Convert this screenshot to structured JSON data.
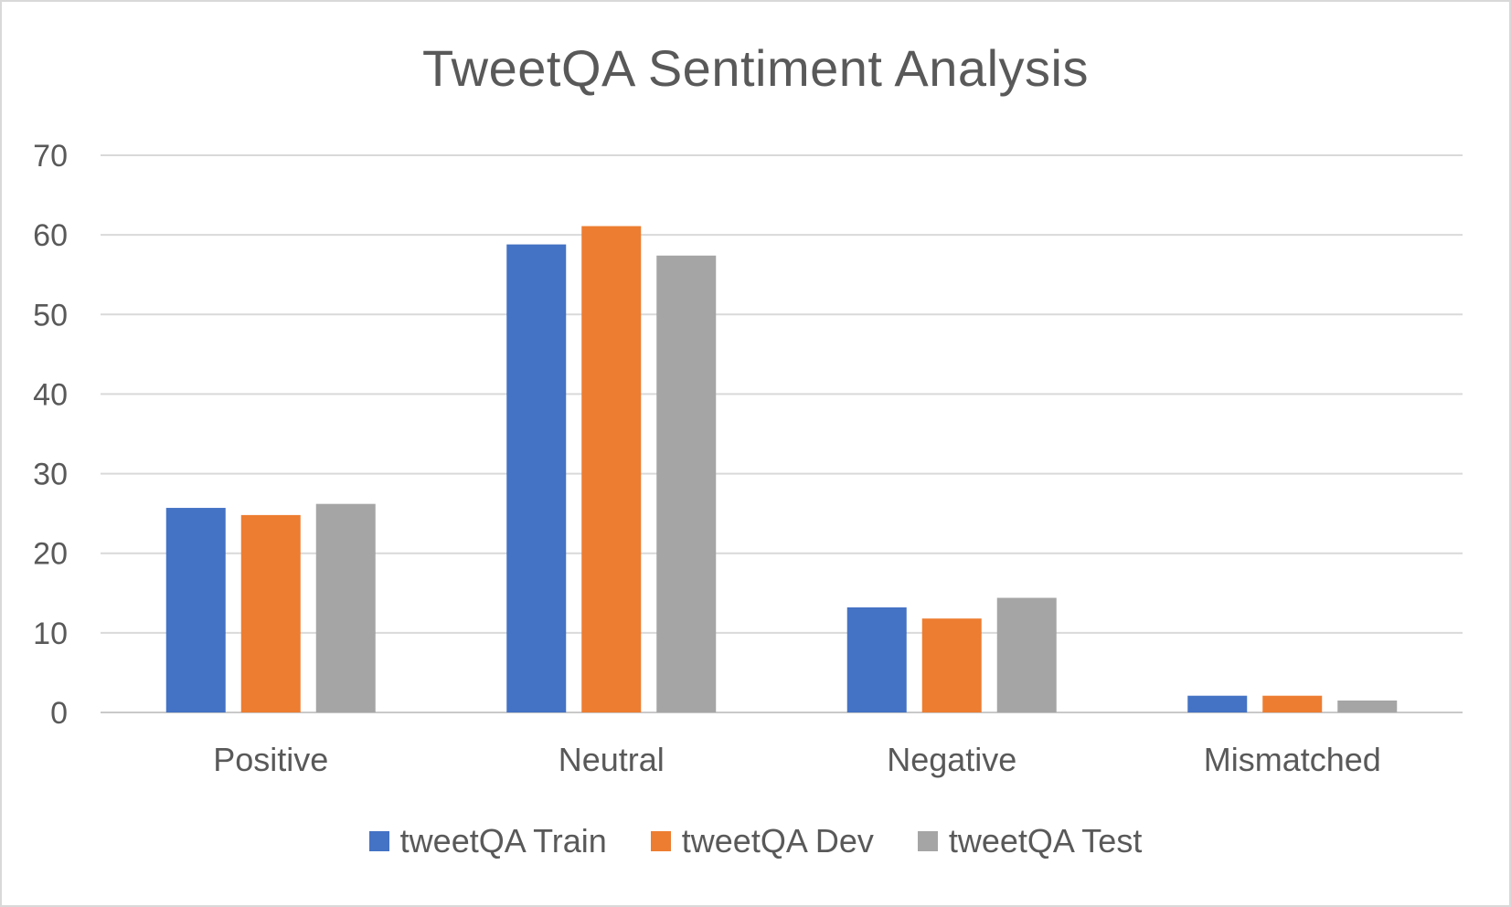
{
  "chart_data": {
    "type": "bar",
    "title": "TweetQA Sentiment Analysis",
    "xlabel": "",
    "ylabel": "",
    "categories": [
      "Positive",
      "Neutral",
      "Negative",
      "Mismatched"
    ],
    "ylim": [
      0,
      70
    ],
    "yticks": [
      0,
      10,
      20,
      30,
      40,
      50,
      60,
      70
    ],
    "grid": "horizontal",
    "legend_position": "bottom",
    "series": [
      {
        "name": "tweetQA Train",
        "color": "#4472c4",
        "values": [
          25.7,
          58.8,
          13.2,
          2.1
        ]
      },
      {
        "name": "tweetQA Dev",
        "color": "#ed7d31",
        "values": [
          24.8,
          61.1,
          11.8,
          2.1
        ]
      },
      {
        "name": "tweetQA Test",
        "color": "#a5a5a5",
        "values": [
          26.2,
          57.4,
          14.4,
          1.5
        ]
      }
    ]
  }
}
